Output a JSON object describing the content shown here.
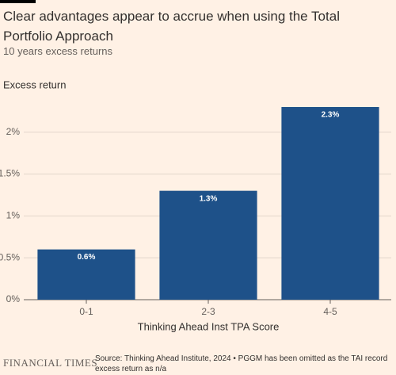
{
  "chart_data": {
    "type": "bar",
    "title": "Clear advantages appear to accrue when using the Total Portfolio Approach",
    "subtitle": "10 years excess returns",
    "y_label": "Excess return",
    "x_label": "Thinking Ahead Inst TPA Score",
    "categories": [
      "0-1",
      "2-3",
      "4-5"
    ],
    "values": [
      0.6,
      1.3,
      2.3
    ],
    "value_labels": [
      "0.6%",
      "1.3%",
      "2.3%"
    ],
    "color": "#1e5189",
    "ylim": [
      0,
      2.3
    ],
    "yticks": [
      {
        "value": 0,
        "label": "0%"
      },
      {
        "value": 0.5,
        "label": "0.5%"
      },
      {
        "value": 1,
        "label": "1%"
      },
      {
        "value": 1.5,
        "label": "1.5%"
      },
      {
        "value": 2,
        "label": "2%"
      }
    ],
    "grid": true
  },
  "footer": {
    "brand": "FINANCIAL TIMES",
    "source": "Source: Thinking Ahead Institute, 2024 • PGGM has been omitted as the TAI record excess return as n/a"
  }
}
